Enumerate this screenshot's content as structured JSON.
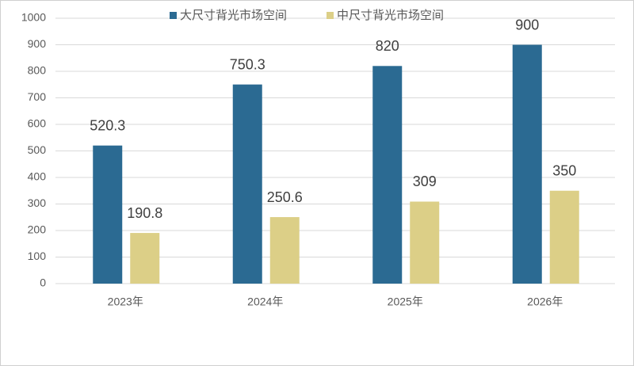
{
  "chart_data": {
    "type": "bar",
    "categories": [
      "2023年",
      "2024年",
      "2025年",
      "2026年"
    ],
    "series": [
      {
        "name": "大尺寸背光市场空间",
        "color": "#2b6a92",
        "values": [
          520.3,
          750.3,
          820,
          900
        ]
      },
      {
        "name": "中尺寸背光市场空间",
        "color": "#dccf87",
        "values": [
          190.8,
          250.6,
          309,
          350
        ]
      }
    ],
    "ylim": [
      0,
      1000
    ],
    "yticks": [
      0,
      100,
      200,
      300,
      400,
      500,
      600,
      700,
      800,
      900,
      1000
    ],
    "grid": true,
    "legend": "top"
  }
}
